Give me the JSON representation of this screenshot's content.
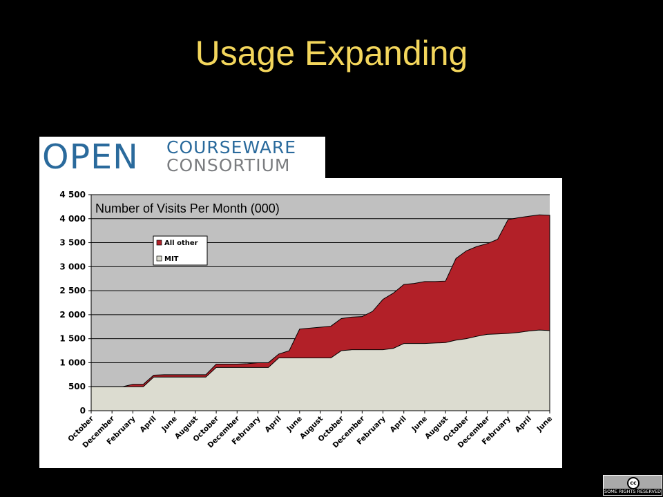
{
  "slide": {
    "title": "Usage Expanding"
  },
  "logo": {
    "big": "OPEN",
    "line1": "COURSEWARE",
    "line2": "CONSORTIUM"
  },
  "badge": {
    "text": "SOME RIGHTS RESERVED",
    "icon_label": "cc",
    "icon": "creative-commons-icon"
  },
  "colors": {
    "background": "#000000",
    "title": "#f3d65c",
    "plot_area": "#c0c0c0",
    "all_other": "#b22028",
    "mit": "#dcdcd0"
  },
  "chart_data": {
    "type": "area",
    "stacked": true,
    "title": "Number of Visits Per Month (000)",
    "xlabel": "",
    "ylabel": "",
    "ylim": [
      0,
      4500
    ],
    "yticks": [
      0,
      500,
      1000,
      1500,
      2000,
      2500,
      3000,
      3500,
      4000,
      4500
    ],
    "ytick_labels": [
      "0",
      "500",
      "1 000",
      "1 500",
      "2 000",
      "2 500",
      "3 000",
      "3 500",
      "4 000",
      "4 500"
    ],
    "grid": true,
    "legend_position": "upper-left",
    "x_labels": [
      "October",
      "December",
      "February",
      "April",
      "June",
      "August",
      "October",
      "December",
      "February",
      "April",
      "June",
      "August",
      "October",
      "December",
      "February",
      "April",
      "June",
      "August",
      "October",
      "December",
      "February",
      "April",
      "June"
    ],
    "series": [
      {
        "name": "MIT",
        "color": "#dcdcd0",
        "values": [
          500,
          500,
          500,
          500,
          500,
          500,
          700,
          700,
          700,
          700,
          700,
          700,
          900,
          900,
          900,
          900,
          900,
          900,
          1100,
          1100,
          1100,
          1100,
          1100,
          1100,
          1250,
          1270,
          1270,
          1270,
          1270,
          1300,
          1400,
          1400,
          1400,
          1410,
          1420,
          1470,
          1500,
          1550,
          1590,
          1600,
          1610,
          1630,
          1660,
          1680,
          1670
        ]
      },
      {
        "name": "All other",
        "color": "#b22028",
        "values": [
          0,
          0,
          0,
          0,
          50,
          50,
          40,
          50,
          50,
          50,
          50,
          50,
          70,
          70,
          70,
          80,
          100,
          100,
          80,
          150,
          600,
          620,
          640,
          660,
          670,
          680,
          690,
          800,
          1050,
          1150,
          1230,
          1250,
          1290,
          1280,
          1280,
          1700,
          1830,
          1870,
          1890,
          1970,
          2370,
          2390,
          2390,
          2400,
          2400
        ]
      }
    ]
  }
}
